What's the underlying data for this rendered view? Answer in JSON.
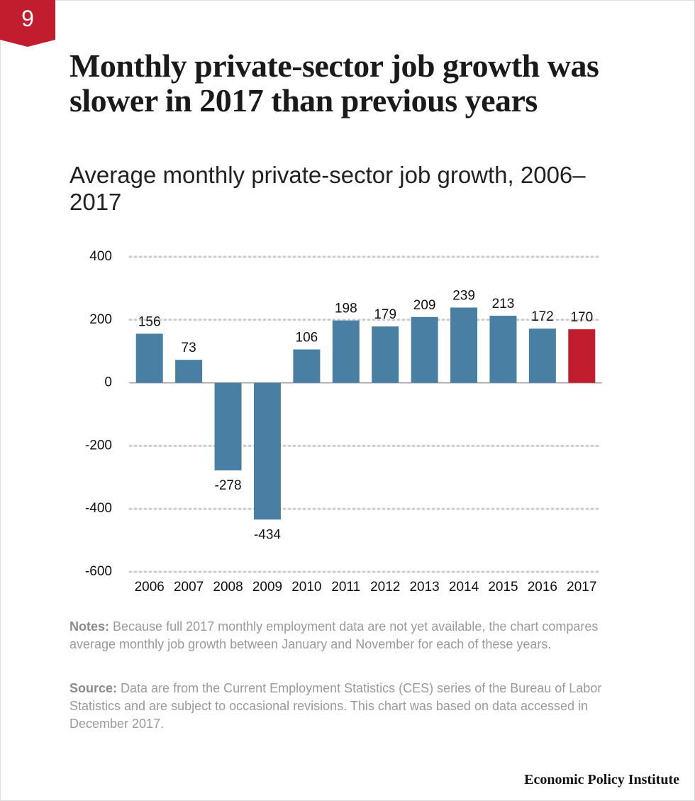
{
  "badge": "9",
  "chart_data": {
    "type": "bar",
    "title": "Monthly private-sector job growth was slower in 2017 than previous years",
    "subtitle": "Average monthly private-sector job growth, 2006–2017",
    "categories": [
      "2006",
      "2007",
      "2008",
      "2009",
      "2010",
      "2011",
      "2012",
      "2013",
      "2014",
      "2015",
      "2016",
      "2017"
    ],
    "values": [
      156,
      73,
      -278,
      -434,
      106,
      198,
      179,
      209,
      239,
      213,
      172,
      170
    ],
    "colors": [
      "#4a7fa4",
      "#4a7fa4",
      "#4a7fa4",
      "#4a7fa4",
      "#4a7fa4",
      "#4a7fa4",
      "#4a7fa4",
      "#4a7fa4",
      "#4a7fa4",
      "#4a7fa4",
      "#4a7fa4",
      "#c21d2e"
    ],
    "ylim": [
      -600,
      400
    ],
    "yticks": [
      -600,
      -400,
      -200,
      0,
      200,
      400
    ],
    "grid": true
  },
  "notes": {
    "label": "Notes:",
    "text": " Because full 2017 monthly employment data are not yet available, the chart compares average monthly job growth between January and November for each of these years."
  },
  "source": {
    "label": "Source:",
    "text": " Data are from the Current Employment Statistics (CES) series of the Bureau of Labor Statistics and are subject to occasional revisions. This chart was based on data accessed in December 2017."
  },
  "footer": "Economic Policy Institute"
}
